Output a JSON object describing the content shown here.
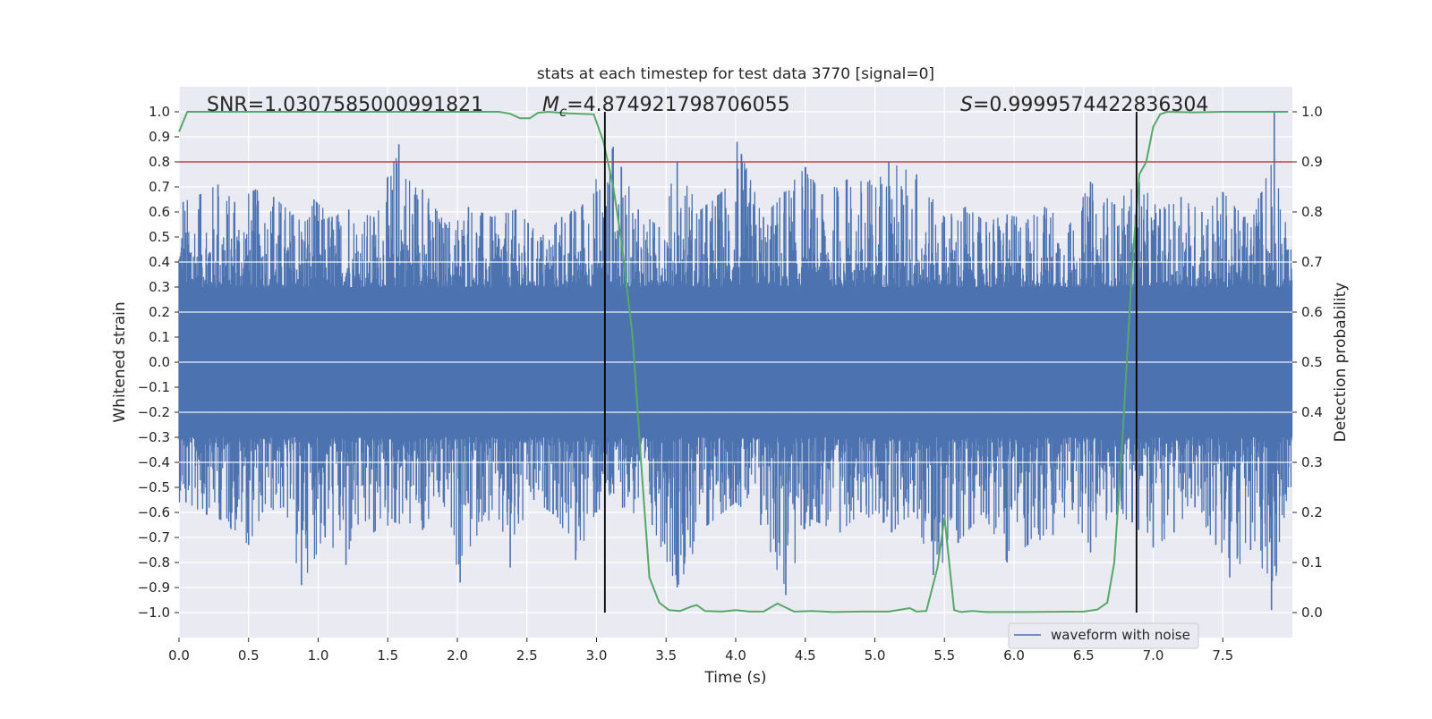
{
  "chart_data": {
    "type": "line",
    "title": "stats at each timestep for test data 3770 [signal=0]",
    "xlabel": "Time (s)",
    "ylabel_left": "Whitened strain",
    "ylabel_right": "Detection probability",
    "xlim": [
      0.0,
      8.0
    ],
    "ylim_left": [
      -1.1,
      1.1
    ],
    "ylim_right": [
      -0.05,
      1.05
    ],
    "x_ticks": [
      "0.0",
      "0.5",
      "1.0",
      "1.5",
      "2.0",
      "2.5",
      "3.0",
      "3.5",
      "4.0",
      "4.5",
      "5.0",
      "5.5",
      "6.0",
      "6.5",
      "7.0",
      "7.5"
    ],
    "y_left_ticks": [
      "1.0",
      "0.9",
      "0.8",
      "0.7",
      "0.6",
      "0.5",
      "0.4",
      "0.3",
      "0.2",
      "0.1",
      "0.0",
      "−0.1",
      "−0.2",
      "−0.3",
      "−0.4",
      "−0.5",
      "−0.6",
      "−0.7",
      "−0.8",
      "−0.9",
      "−1.0"
    ],
    "y_right_ticks": [
      "1.0",
      "0.9",
      "0.8",
      "0.7",
      "0.6",
      "0.5",
      "0.4",
      "0.3",
      "0.2",
      "0.1",
      "0.0"
    ],
    "grid": true,
    "legend_position": "lower-right",
    "annotations": {
      "snr": "SNR=1.0307585000991821",
      "mc_symbol": "M",
      "mc_subscript": "c",
      "mc_value": "=4.874921798706055",
      "s_symbol": "S",
      "s_value": "=0.9999574422836304"
    },
    "threshold": {
      "value": 0.8,
      "axis": "left",
      "color": "#c03d3e"
    },
    "vlines": [
      {
        "x": 3.06,
        "ymin": -1.0,
        "ymax": 1.0,
        "color": "#000000"
      },
      {
        "x": 6.88,
        "ymin": -1.0,
        "ymax": 1.0,
        "color": "#000000"
      }
    ],
    "series": [
      {
        "name": "waveform with noise",
        "axis": "left",
        "color": "#4c72b0",
        "note": "dense noise; peak envelope samples",
        "peaks_upper": [
          {
            "x": 0.03,
            "y": 0.64
          },
          {
            "x": 0.15,
            "y": 0.67
          },
          {
            "x": 0.28,
            "y": 0.71
          },
          {
            "x": 0.4,
            "y": 0.64
          },
          {
            "x": 0.55,
            "y": 0.69
          },
          {
            "x": 0.68,
            "y": 0.66
          },
          {
            "x": 0.82,
            "y": 0.59
          },
          {
            "x": 0.97,
            "y": 0.65
          },
          {
            "x": 1.1,
            "y": 0.58
          },
          {
            "x": 1.22,
            "y": 0.61
          },
          {
            "x": 1.4,
            "y": 0.58
          },
          {
            "x": 1.58,
            "y": 0.87
          },
          {
            "x": 1.75,
            "y": 0.69
          },
          {
            "x": 1.92,
            "y": 0.55
          },
          {
            "x": 2.08,
            "y": 0.62
          },
          {
            "x": 2.25,
            "y": 0.58
          },
          {
            "x": 2.42,
            "y": 0.61
          },
          {
            "x": 2.6,
            "y": 0.5
          },
          {
            "x": 2.75,
            "y": 0.58
          },
          {
            "x": 2.9,
            "y": 0.63
          },
          {
            "x": 3.12,
            "y": 0.86
          },
          {
            "x": 3.3,
            "y": 0.61
          },
          {
            "x": 3.45,
            "y": 0.54
          },
          {
            "x": 3.58,
            "y": 0.8
          },
          {
            "x": 3.75,
            "y": 0.61
          },
          {
            "x": 3.9,
            "y": 0.68
          },
          {
            "x": 4.01,
            "y": 0.88
          },
          {
            "x": 4.2,
            "y": 0.58
          },
          {
            "x": 4.35,
            "y": 0.68
          },
          {
            "x": 4.5,
            "y": 0.78
          },
          {
            "x": 4.62,
            "y": 0.67
          },
          {
            "x": 4.8,
            "y": 0.73
          },
          {
            "x": 4.95,
            "y": 0.72
          },
          {
            "x": 5.1,
            "y": 0.8
          },
          {
            "x": 5.3,
            "y": 0.75
          },
          {
            "x": 5.5,
            "y": 0.58
          },
          {
            "x": 5.65,
            "y": 0.62
          },
          {
            "x": 5.8,
            "y": 0.56
          },
          {
            "x": 5.95,
            "y": 0.59
          },
          {
            "x": 6.1,
            "y": 0.57
          },
          {
            "x": 6.22,
            "y": 0.62
          },
          {
            "x": 6.4,
            "y": 0.55
          },
          {
            "x": 6.55,
            "y": 0.72
          },
          {
            "x": 6.72,
            "y": 0.63
          },
          {
            "x": 6.9,
            "y": 0.72
          },
          {
            "x": 7.05,
            "y": 0.61
          },
          {
            "x": 7.2,
            "y": 0.66
          },
          {
            "x": 7.35,
            "y": 0.6
          },
          {
            "x": 7.5,
            "y": 0.68
          },
          {
            "x": 7.65,
            "y": 0.58
          },
          {
            "x": 7.78,
            "y": 0.68
          },
          {
            "x": 7.87,
            "y": 1.0
          },
          {
            "x": 7.97,
            "y": 0.45
          }
        ],
        "peaks_lower": [
          {
            "x": 0.05,
            "y": -0.56
          },
          {
            "x": 0.2,
            "y": -0.61
          },
          {
            "x": 0.3,
            "y": -0.63
          },
          {
            "x": 0.5,
            "y": -0.73
          },
          {
            "x": 0.6,
            "y": -0.6
          },
          {
            "x": 0.75,
            "y": -0.58
          },
          {
            "x": 0.88,
            "y": -0.89
          },
          {
            "x": 1.05,
            "y": -0.7
          },
          {
            "x": 1.2,
            "y": -0.81
          },
          {
            "x": 1.4,
            "y": -0.68
          },
          {
            "x": 1.55,
            "y": -0.64
          },
          {
            "x": 1.75,
            "y": -0.67
          },
          {
            "x": 1.9,
            "y": -0.56
          },
          {
            "x": 2.02,
            "y": -0.88
          },
          {
            "x": 2.2,
            "y": -0.6
          },
          {
            "x": 2.38,
            "y": -0.82
          },
          {
            "x": 2.55,
            "y": -0.55
          },
          {
            "x": 2.72,
            "y": -0.62
          },
          {
            "x": 2.85,
            "y": -0.79
          },
          {
            "x": 3.0,
            "y": -0.6
          },
          {
            "x": 3.2,
            "y": -0.58
          },
          {
            "x": 3.4,
            "y": -0.65
          },
          {
            "x": 3.58,
            "y": -0.9
          },
          {
            "x": 3.8,
            "y": -0.65
          },
          {
            "x": 4.0,
            "y": -0.56
          },
          {
            "x": 4.18,
            "y": -0.65
          },
          {
            "x": 4.36,
            "y": -0.93
          },
          {
            "x": 4.55,
            "y": -0.63
          },
          {
            "x": 4.75,
            "y": -0.68
          },
          {
            "x": 4.9,
            "y": -0.6
          },
          {
            "x": 5.12,
            "y": -0.68
          },
          {
            "x": 5.28,
            "y": -0.6
          },
          {
            "x": 5.42,
            "y": -0.85
          },
          {
            "x": 5.6,
            "y": -0.72
          },
          {
            "x": 5.78,
            "y": -0.6
          },
          {
            "x": 5.95,
            "y": -0.8
          },
          {
            "x": 6.1,
            "y": -0.73
          },
          {
            "x": 6.28,
            "y": -0.69
          },
          {
            "x": 6.42,
            "y": -0.59
          },
          {
            "x": 6.55,
            "y": -0.76
          },
          {
            "x": 6.7,
            "y": -0.6
          },
          {
            "x": 6.85,
            "y": -0.64
          },
          {
            "x": 7.0,
            "y": -0.74
          },
          {
            "x": 7.15,
            "y": -0.68
          },
          {
            "x": 7.3,
            "y": -0.58
          },
          {
            "x": 7.45,
            "y": -0.73
          },
          {
            "x": 7.55,
            "y": -0.86
          },
          {
            "x": 7.7,
            "y": -0.75
          },
          {
            "x": 7.85,
            "y": -0.99
          },
          {
            "x": 7.97,
            "y": -0.5
          }
        ]
      },
      {
        "name": "",
        "axis": "right",
        "color": "#55a868",
        "points": [
          {
            "x": 0.0,
            "y": 0.96
          },
          {
            "x": 0.06,
            "y": 1.0
          },
          {
            "x": 0.3,
            "y": 1.0
          },
          {
            "x": 1.0,
            "y": 1.0
          },
          {
            "x": 2.0,
            "y": 1.0
          },
          {
            "x": 2.3,
            "y": 1.0
          },
          {
            "x": 2.38,
            "y": 0.996
          },
          {
            "x": 2.45,
            "y": 0.987
          },
          {
            "x": 2.52,
            "y": 0.987
          },
          {
            "x": 2.58,
            "y": 0.998
          },
          {
            "x": 2.65,
            "y": 1.0
          },
          {
            "x": 2.8,
            "y": 0.997
          },
          {
            "x": 2.98,
            "y": 0.995
          },
          {
            "x": 3.05,
            "y": 0.94
          },
          {
            "x": 3.12,
            "y": 0.85
          },
          {
            "x": 3.18,
            "y": 0.74
          },
          {
            "x": 3.26,
            "y": 0.55
          },
          {
            "x": 3.32,
            "y": 0.3
          },
          {
            "x": 3.38,
            "y": 0.07
          },
          {
            "x": 3.45,
            "y": 0.02
          },
          {
            "x": 3.52,
            "y": 0.005
          },
          {
            "x": 3.6,
            "y": 0.003
          },
          {
            "x": 3.68,
            "y": 0.012
          },
          {
            "x": 3.72,
            "y": 0.015
          },
          {
            "x": 3.78,
            "y": 0.003
          },
          {
            "x": 3.9,
            "y": 0.002
          },
          {
            "x": 4.0,
            "y": 0.005
          },
          {
            "x": 4.1,
            "y": 0.002
          },
          {
            "x": 4.2,
            "y": 0.002
          },
          {
            "x": 4.3,
            "y": 0.018
          },
          {
            "x": 4.36,
            "y": 0.01
          },
          {
            "x": 4.42,
            "y": 0.002
          },
          {
            "x": 4.55,
            "y": 0.003
          },
          {
            "x": 4.7,
            "y": 0.001
          },
          {
            "x": 4.9,
            "y": 0.002
          },
          {
            "x": 5.1,
            "y": 0.002
          },
          {
            "x": 5.25,
            "y": 0.009
          },
          {
            "x": 5.3,
            "y": 0.002
          },
          {
            "x": 5.37,
            "y": 0.003
          },
          {
            "x": 5.45,
            "y": 0.09
          },
          {
            "x": 5.5,
            "y": 0.19
          },
          {
            "x": 5.57,
            "y": 0.005
          },
          {
            "x": 5.62,
            "y": 0.001
          },
          {
            "x": 5.7,
            "y": 0.003
          },
          {
            "x": 5.8,
            "y": 0.001
          },
          {
            "x": 6.0,
            "y": 0.001
          },
          {
            "x": 6.5,
            "y": 0.002
          },
          {
            "x": 6.6,
            "y": 0.006
          },
          {
            "x": 6.67,
            "y": 0.02
          },
          {
            "x": 6.72,
            "y": 0.1
          },
          {
            "x": 6.78,
            "y": 0.35
          },
          {
            "x": 6.85,
            "y": 0.7
          },
          {
            "x": 6.9,
            "y": 0.875
          },
          {
            "x": 6.95,
            "y": 0.9
          },
          {
            "x": 7.0,
            "y": 0.97
          },
          {
            "x": 7.05,
            "y": 0.995
          },
          {
            "x": 7.1,
            "y": 1.0
          },
          {
            "x": 7.3,
            "y": 0.999
          },
          {
            "x": 7.5,
            "y": 1.0
          },
          {
            "x": 7.97,
            "y": 1.0
          }
        ]
      }
    ]
  }
}
